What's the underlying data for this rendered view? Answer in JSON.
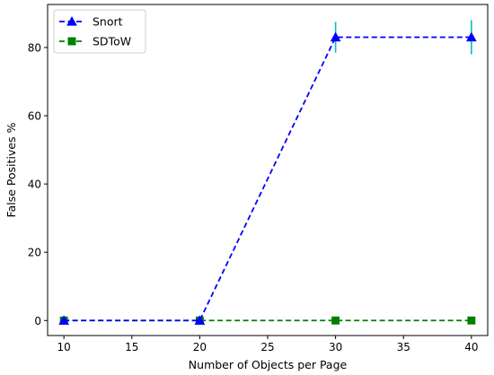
{
  "chart_data": {
    "type": "line",
    "xlabel": "Number of Objects per Page",
    "ylabel": "False Positives %",
    "xlim": [
      8.8,
      41.2
    ],
    "ylim": [
      -4.4,
      92.6
    ],
    "xticks": [
      10,
      15,
      20,
      25,
      30,
      35,
      40
    ],
    "yticks": [
      0,
      20,
      40,
      60,
      80
    ],
    "grid": false,
    "legend_position": "top-left",
    "series": [
      {
        "name": "Snort",
        "color": "#0000ff",
        "marker": "triangle",
        "linestyle": "dashed",
        "x": [
          10,
          20,
          30,
          40
        ],
        "y": [
          0,
          0,
          83,
          83
        ],
        "error": [
          0,
          0,
          4.5,
          5
        ],
        "error_color": "#00bfbf"
      },
      {
        "name": "SDToW",
        "color": "#008000",
        "marker": "square",
        "linestyle": "dashed",
        "x": [
          10,
          20,
          30,
          40
        ],
        "y": [
          0,
          0,
          0,
          0
        ]
      }
    ]
  }
}
